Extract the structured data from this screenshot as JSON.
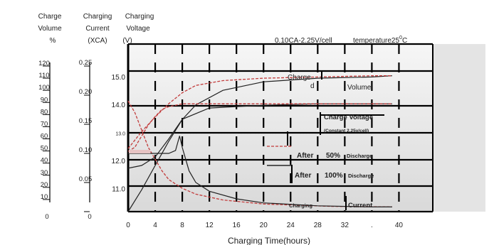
{
  "chart_data": {
    "type": "line",
    "title": "",
    "header_left": "0.10CA-2.25V/cell",
    "header_right": "temperature25",
    "header_right_sup": "0",
    "header_right_unit": "C",
    "xlabel": "Charging Time(hours)",
    "x_ticks": [
      "0",
      "4",
      "8",
      "12",
      "16",
      "20",
      "24",
      "28",
      "32",
      ".",
      "40"
    ],
    "x_tick_values": [
      0,
      4,
      8,
      12,
      16,
      20,
      24,
      28,
      32,
      36,
      40
    ],
    "xlim": [
      0,
      45
    ],
    "axes": {
      "charge_volume": {
        "title_lines": [
          "Charge",
          "Volume",
          "%"
        ],
        "ticks": [
          "120",
          "110",
          "100",
          "90",
          "80",
          "70",
          "60",
          "50",
          "40",
          "30",
          "20",
          "10",
          "0"
        ],
        "tick_values": [
          120,
          110,
          100,
          90,
          80,
          70,
          60,
          50,
          40,
          30,
          20,
          10,
          0
        ],
        "ylim": [
          0,
          130
        ]
      },
      "charging_current": {
        "title_lines": [
          "Charging",
          "Current",
          "(XCA)"
        ],
        "ticks": [
          "0.25",
          "0.20",
          "0.15",
          "0.10",
          "0.05",
          "0"
        ],
        "tick_values": [
          0.25,
          0.2,
          0.15,
          0.1,
          0.05,
          0
        ],
        "ylim": [
          0,
          0.25
        ]
      },
      "charging_voltage": {
        "title_lines": [
          "Charging",
          "Voltage",
          "(V)"
        ],
        "ticks": [
          "15.0",
          "14.0",
          "13.0",
          "12.0",
          "11.0"
        ],
        "tick_values": [
          15,
          14,
          13,
          12,
          11
        ],
        "ylim": [
          10.2,
          15.6
        ]
      }
    },
    "annotations": [
      {
        "text": "Charge",
        "bold": false
      },
      {
        "text": "d",
        "bold": false
      },
      {
        "text": "Volume",
        "bold": false
      },
      {
        "text": "Charge Voltage",
        "bold": true
      },
      {
        "text": "(Constant 2.25v/cell)",
        "bold": true
      },
      {
        "text": "After",
        "bold": true
      },
      {
        "text": "50%",
        "bold": true
      },
      {
        "text": "Discharge",
        "bold": true
      },
      {
        "text": "After",
        "bold": true
      },
      {
        "text": "100%",
        "bold": true
      },
      {
        "text": "Discharge",
        "bold": true
      },
      {
        "text": "Charging",
        "bold": true
      },
      {
        "text": "Current",
        "bold": true
      }
    ],
    "series": [
      {
        "condition": "after-100%-discharge",
        "quantity": "charge-volume",
        "style": "solid",
        "axis": "charge_volume",
        "x": [
          0,
          2,
          4,
          6,
          8,
          10,
          14,
          20,
          28,
          36,
          39
        ],
        "y": [
          0,
          18,
          38,
          58,
          76,
          88,
          100,
          107,
          110,
          111,
          112
        ]
      },
      {
        "condition": "after-50%-discharge",
        "quantity": "charge-volume",
        "style": "dashed",
        "axis": "charge_volume",
        "x": [
          0,
          2,
          4,
          6,
          8,
          10,
          14,
          20,
          28,
          36,
          39
        ],
        "y": [
          52,
          66,
          78,
          89,
          98,
          104,
          108,
          110,
          111,
          112,
          112
        ]
      },
      {
        "condition": "after-100%-discharge",
        "quantity": "charging-voltage",
        "style": "solid",
        "axis": "charging_voltage",
        "x": [
          0,
          2,
          4,
          6,
          8,
          12,
          20,
          28,
          36,
          39
        ],
        "y": [
          11.75,
          11.85,
          12.15,
          12.8,
          13.5,
          13.9,
          14.0,
          14.05,
          14.05,
          14.05
        ]
      },
      {
        "condition": "after-50%-discharge",
        "quantity": "charging-voltage",
        "style": "dashed",
        "axis": "charging_voltage",
        "x": [
          0,
          1,
          2,
          3,
          4,
          5,
          6,
          7,
          8,
          12,
          20,
          28,
          36,
          39
        ],
        "y": [
          12.35,
          12.5,
          12.9,
          13.3,
          13.6,
          13.85,
          13.95,
          14.0,
          14.05,
          14.05,
          14.05,
          14.05,
          14.05,
          14.05
        ]
      },
      {
        "condition": "after-50%-discharge",
        "quantity": "charging-current",
        "style": "dashed",
        "axis": "charging_current",
        "x": [
          0,
          1,
          2,
          3,
          4,
          5,
          6,
          8,
          10,
          14,
          20,
          30,
          39
        ],
        "y": [
          0.19,
          0.17,
          0.14,
          0.11,
          0.09,
          0.07,
          0.055,
          0.04,
          0.03,
          0.02,
          0.013,
          0.009,
          0.008
        ]
      },
      {
        "condition": "after-100%-discharge",
        "quantity": "charging-current",
        "style": "solid",
        "axis": "charging_current",
        "x": [
          0,
          4,
          6,
          7,
          7.6,
          8,
          9,
          10,
          12,
          16,
          20,
          28,
          36,
          39
        ],
        "y": [
          0.1,
          0.1,
          0.1,
          0.105,
          0.13,
          0.11,
          0.07,
          0.05,
          0.035,
          0.022,
          0.015,
          0.01,
          0.008,
          0.008
        ]
      }
    ]
  }
}
